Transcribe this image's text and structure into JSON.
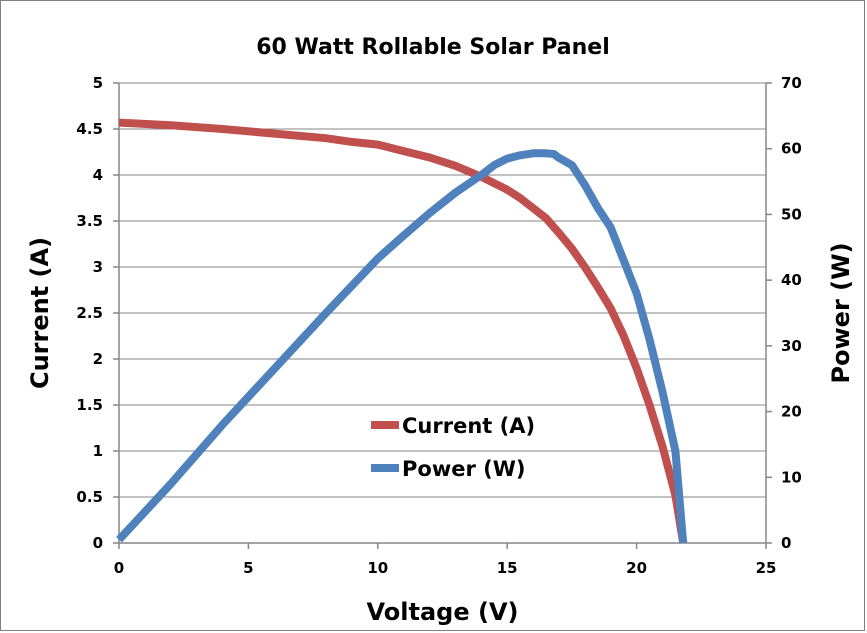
{
  "chart_data": {
    "type": "line",
    "title": "60 Watt Rollable Solar Panel",
    "xlabel": "Voltage (V)",
    "ylabel": "Current (A)",
    "y2label": "Power (W)",
    "xlim": [
      0,
      25
    ],
    "ylim": [
      0,
      5
    ],
    "y2lim": [
      0,
      70
    ],
    "xticks": [
      0,
      5,
      10,
      15,
      20,
      25
    ],
    "yticks": [
      0,
      0.5,
      1,
      1.5,
      2,
      2.5,
      3,
      3.5,
      4,
      4.5,
      5
    ],
    "y2ticks": [
      0,
      10,
      20,
      30,
      40,
      50,
      60,
      70
    ],
    "grid": true,
    "legend_placement": "center-bottom",
    "series": [
      {
        "name": "Current (A)",
        "axis": "left",
        "color": "#c0504d",
        "x": [
          0,
          2,
          4,
          6,
          8,
          9,
          10,
          11,
          12,
          13,
          14,
          15,
          15.5,
          16,
          16.5,
          17,
          17.5,
          18,
          18.5,
          19,
          19.5,
          20,
          20.5,
          21,
          21.5,
          21.8
        ],
        "y": [
          4.57,
          4.54,
          4.5,
          4.45,
          4.4,
          4.36,
          4.33,
          4.26,
          4.19,
          4.1,
          3.98,
          3.84,
          3.75,
          3.64,
          3.53,
          3.37,
          3.2,
          3.0,
          2.78,
          2.55,
          2.25,
          1.9,
          1.5,
          1.05,
          0.52,
          0.0
        ]
      },
      {
        "name": "Power (W)",
        "axis": "right",
        "color": "#4f81bd",
        "x": [
          0,
          2,
          4,
          6,
          8,
          10,
          11,
          12,
          13,
          14,
          14.5,
          15,
          15.5,
          16,
          16.5,
          16.8,
          17,
          17.5,
          18,
          18.5,
          19,
          19.5,
          20,
          20.5,
          21,
          21.5,
          21.8
        ],
        "y": [
          0.5,
          9,
          18,
          26.5,
          35,
          43.3,
          46.8,
          50.2,
          53.3,
          56,
          57.5,
          58.5,
          59,
          59.3,
          59.3,
          59.2,
          58.6,
          57.5,
          54.5,
          51,
          48,
          43,
          38,
          31,
          23,
          14,
          0
        ]
      }
    ]
  }
}
